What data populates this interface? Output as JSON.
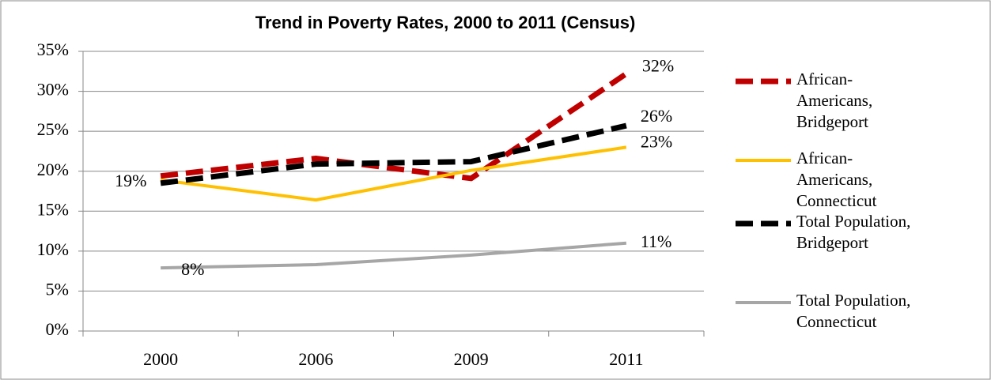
{
  "chart_data": {
    "type": "line",
    "title": "Trend in Poverty Rates, 2000 to 2011 (Census)",
    "categories": [
      "2000",
      "2006",
      "2009",
      "2011"
    ],
    "series": [
      {
        "name": "African-Americans, Bridgeport",
        "color": "#c00000",
        "dashed": true,
        "values": [
          19.4,
          21.6,
          19.1,
          32.2
        ],
        "value_labels": [
          "19%",
          null,
          null,
          "32%"
        ]
      },
      {
        "name": "African-Americans, Connecticut",
        "color": "#ffc000",
        "dashed": false,
        "values": [
          18.9,
          16.4,
          20.1,
          23.0
        ],
        "value_labels": [
          null,
          null,
          null,
          "23%"
        ]
      },
      {
        "name": "Total Population, Bridgeport",
        "color": "#000000",
        "dashed": true,
        "values": [
          18.5,
          20.9,
          21.2,
          25.7
        ],
        "value_labels": [
          null,
          null,
          null,
          "26%"
        ]
      },
      {
        "name": "Total Population, Connecticut",
        "color": "#a6a6a6",
        "dashed": false,
        "values": [
          7.9,
          8.3,
          9.5,
          11.0
        ],
        "value_labels": [
          "8%",
          null,
          null,
          "11%"
        ]
      }
    ],
    "ylim": [
      0,
      35
    ],
    "yticks": [
      {
        "value": 0,
        "label": "0%"
      },
      {
        "value": 5,
        "label": "5%"
      },
      {
        "value": 10,
        "label": "10%"
      },
      {
        "value": 15,
        "label": "15%"
      },
      {
        "value": 20,
        "label": "20%"
      },
      {
        "value": 25,
        "label": "25%"
      },
      {
        "value": 30,
        "label": "30%"
      },
      {
        "value": 35,
        "label": "35%"
      }
    ],
    "grid": true,
    "legend": "right"
  }
}
